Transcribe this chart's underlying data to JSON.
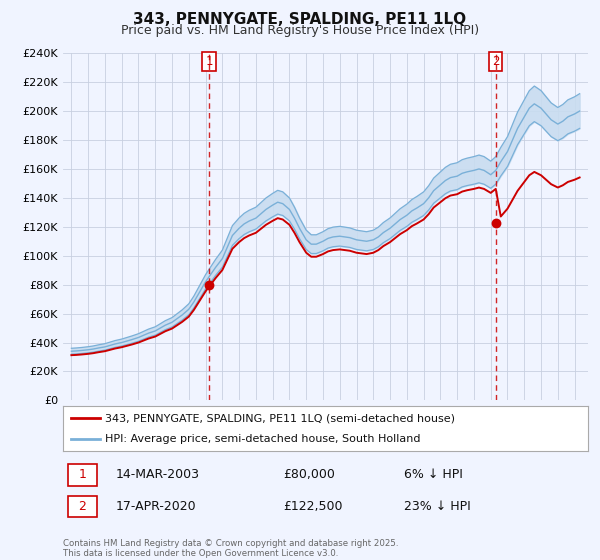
{
  "title": "343, PENNYGATE, SPALDING, PE11 1LQ",
  "subtitle": "Price paid vs. HM Land Registry's House Price Index (HPI)",
  "legend_line1": "343, PENNYGATE, SPALDING, PE11 1LQ (semi-detached house)",
  "legend_line2": "HPI: Average price, semi-detached house, South Holland",
  "sale1_date": "14-MAR-2003",
  "sale1_price": "£80,000",
  "sale1_hpi": "6% ↓ HPI",
  "sale2_date": "17-APR-2020",
  "sale2_price": "£122,500",
  "sale2_hpi": "23% ↓ HPI",
  "footnote1": "Contains HM Land Registry data © Crown copyright and database right 2025.",
  "footnote2": "This data is licensed under the Open Government Licence v3.0.",
  "price_line_color": "#cc0000",
  "hpi_line_color": "#7ab0d8",
  "hpi_fill_color": "#c8dcf0",
  "price_dot_color": "#cc0000",
  "vline_color": "#cc0000",
  "background_color": "#f0f4ff",
  "plot_bg_color": "#f0f4ff",
  "grid_color": "#c8d0e0",
  "ylim": [
    0,
    240000
  ],
  "xlim_min": 1994.5,
  "xlim_max": 2025.8,
  "sale1_x": 2003.2,
  "sale1_y": 80000,
  "sale2_x": 2020.3,
  "sale2_y": 122500
}
